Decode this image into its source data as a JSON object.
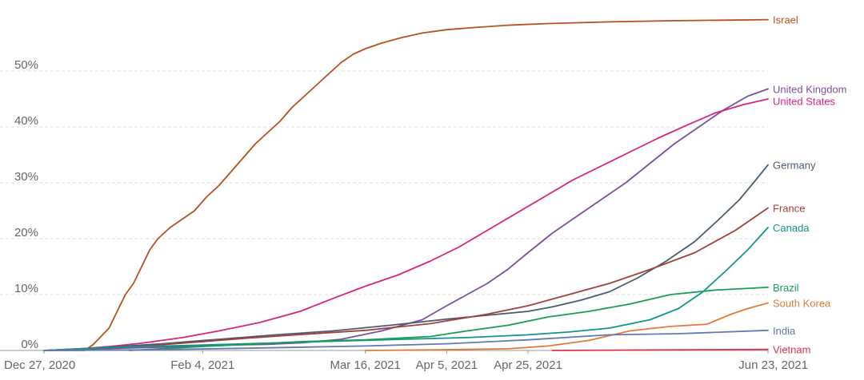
{
  "chart_data": {
    "type": "line",
    "title": "",
    "xlabel": "",
    "ylabel": "",
    "x_ticks": [
      "Dec 27, 2020",
      "Feb 4, 2021",
      "Mar 16, 2021",
      "Apr 5, 2021",
      "Apr 25, 2021",
      "Jun 23, 2021"
    ],
    "y_ticks": [
      "0%",
      "10%",
      "20%",
      "30%",
      "40%",
      "50%"
    ],
    "xlim": [
      "2020-12-27",
      "2021-06-23"
    ],
    "ylim": [
      0,
      59
    ],
    "grid": true,
    "legend": "inline labels at line ends",
    "series": [
      {
        "name": "Israel",
        "color": "#b6521c",
        "points": [
          [
            "2020-12-27",
            0
          ],
          [
            "2021-01-06",
            0
          ],
          [
            "2021-01-08",
            1
          ],
          [
            "2021-01-10",
            2.5
          ],
          [
            "2021-01-12",
            4
          ],
          [
            "2021-01-14",
            7
          ],
          [
            "2021-01-16",
            10
          ],
          [
            "2021-01-18",
            12
          ],
          [
            "2021-01-20",
            15
          ],
          [
            "2021-01-22",
            18
          ],
          [
            "2021-01-24",
            20
          ],
          [
            "2021-01-27",
            22
          ],
          [
            "2021-01-30",
            23.5
          ],
          [
            "2021-02-02",
            25
          ],
          [
            "2021-02-05",
            27.5
          ],
          [
            "2021-02-08",
            29.5
          ],
          [
            "2021-02-11",
            32
          ],
          [
            "2021-02-14",
            34.5
          ],
          [
            "2021-02-17",
            37
          ],
          [
            "2021-02-20",
            39
          ],
          [
            "2021-02-23",
            41
          ],
          [
            "2021-02-26",
            43.5
          ],
          [
            "2021-03-01",
            45.5
          ],
          [
            "2021-03-04",
            47.5
          ],
          [
            "2021-03-07",
            49.5
          ],
          [
            "2021-03-10",
            51.5
          ],
          [
            "2021-03-13",
            53
          ],
          [
            "2021-03-16",
            54
          ],
          [
            "2021-03-20",
            55
          ],
          [
            "2021-03-25",
            56
          ],
          [
            "2021-03-30",
            56.8
          ],
          [
            "2021-04-05",
            57.4
          ],
          [
            "2021-04-12",
            57.8
          ],
          [
            "2021-04-20",
            58.2
          ],
          [
            "2021-04-30",
            58.5
          ],
          [
            "2021-05-15",
            58.8
          ],
          [
            "2021-05-30",
            59
          ],
          [
            "2021-06-23",
            59.2
          ]
        ]
      },
      {
        "name": "United Kingdom",
        "color": "#7d4fa3",
        "points": [
          [
            "2020-12-27",
            0
          ],
          [
            "2021-01-10",
            0.3
          ],
          [
            "2021-01-25",
            0.6
          ],
          [
            "2021-02-05",
            0.9
          ],
          [
            "2021-02-20",
            1.1
          ],
          [
            "2021-03-01",
            1.4
          ],
          [
            "2021-03-10",
            2
          ],
          [
            "2021-03-20",
            3.5
          ],
          [
            "2021-03-30",
            5.5
          ],
          [
            "2021-04-05",
            8
          ],
          [
            "2021-04-10",
            10
          ],
          [
            "2021-04-15",
            12
          ],
          [
            "2021-04-20",
            14.5
          ],
          [
            "2021-04-25",
            17.5
          ],
          [
            "2021-05-01",
            21
          ],
          [
            "2021-05-07",
            24
          ],
          [
            "2021-05-13",
            27
          ],
          [
            "2021-05-19",
            30
          ],
          [
            "2021-05-25",
            33.5
          ],
          [
            "2021-05-31",
            37
          ],
          [
            "2021-06-06",
            40
          ],
          [
            "2021-06-12",
            43
          ],
          [
            "2021-06-18",
            45.5
          ],
          [
            "2021-06-23",
            46.8
          ]
        ]
      },
      {
        "name": "United States",
        "color": "#d6247f",
        "points": [
          [
            "2020-12-27",
            0
          ],
          [
            "2021-01-05",
            0.3
          ],
          [
            "2021-01-12",
            0.7
          ],
          [
            "2021-01-20",
            1.3
          ],
          [
            "2021-01-30",
            2.3
          ],
          [
            "2021-02-08",
            3.5
          ],
          [
            "2021-02-18",
            5
          ],
          [
            "2021-02-28",
            7
          ],
          [
            "2021-03-08",
            9.3
          ],
          [
            "2021-03-16",
            11.5
          ],
          [
            "2021-03-24",
            13.5
          ],
          [
            "2021-04-01",
            16
          ],
          [
            "2021-04-08",
            18.5
          ],
          [
            "2021-04-15",
            21.5
          ],
          [
            "2021-04-22",
            24.5
          ],
          [
            "2021-04-29",
            27.5
          ],
          [
            "2021-05-06",
            30.5
          ],
          [
            "2021-05-13",
            33
          ],
          [
            "2021-05-20",
            35.5
          ],
          [
            "2021-05-27",
            38
          ],
          [
            "2021-06-03",
            40.3
          ],
          [
            "2021-06-10",
            42.5
          ],
          [
            "2021-06-17",
            44
          ],
          [
            "2021-06-23",
            45
          ]
        ]
      },
      {
        "name": "Germany",
        "color": "#4a5b72",
        "points": [
          [
            "2020-12-27",
            0
          ],
          [
            "2021-01-10",
            0.5
          ],
          [
            "2021-01-25",
            1.2
          ],
          [
            "2021-02-08",
            2
          ],
          [
            "2021-02-22",
            2.8
          ],
          [
            "2021-03-08",
            3.5
          ],
          [
            "2021-03-22",
            4.5
          ],
          [
            "2021-04-05",
            5.6
          ],
          [
            "2021-04-15",
            6.3
          ],
          [
            "2021-04-25",
            7
          ],
          [
            "2021-05-01",
            7.8
          ],
          [
            "2021-05-08",
            9
          ],
          [
            "2021-05-15",
            10.5
          ],
          [
            "2021-05-22",
            13
          ],
          [
            "2021-05-29",
            16
          ],
          [
            "2021-06-05",
            19.5
          ],
          [
            "2021-06-11",
            23.5
          ],
          [
            "2021-06-16",
            27
          ],
          [
            "2021-06-20",
            30.5
          ],
          [
            "2021-06-23",
            33.2
          ]
        ]
      },
      {
        "name": "France",
        "color": "#a3403a",
        "points": [
          [
            "2020-12-27",
            0
          ],
          [
            "2021-01-15",
            0.5
          ],
          [
            "2021-01-30",
            1.3
          ],
          [
            "2021-02-15",
            2.2
          ],
          [
            "2021-03-01",
            2.9
          ],
          [
            "2021-03-16",
            3.6
          ],
          [
            "2021-04-01",
            4.8
          ],
          [
            "2021-04-15",
            6.5
          ],
          [
            "2021-04-25",
            8
          ],
          [
            "2021-05-05",
            10
          ],
          [
            "2021-05-15",
            12
          ],
          [
            "2021-05-25",
            14.5
          ],
          [
            "2021-06-05",
            17.5
          ],
          [
            "2021-06-15",
            21.5
          ],
          [
            "2021-06-23",
            25.5
          ]
        ]
      },
      {
        "name": "Canada",
        "color": "#12958f",
        "points": [
          [
            "2020-12-27",
            0
          ],
          [
            "2021-01-15",
            0.6
          ],
          [
            "2021-02-05",
            1
          ],
          [
            "2021-03-01",
            1.5
          ],
          [
            "2021-03-20",
            1.9
          ],
          [
            "2021-04-10",
            2.3
          ],
          [
            "2021-04-25",
            2.8
          ],
          [
            "2021-05-05",
            3.3
          ],
          [
            "2021-05-15",
            4
          ],
          [
            "2021-05-25",
            5.5
          ],
          [
            "2021-06-01",
            7.5
          ],
          [
            "2021-06-07",
            10.5
          ],
          [
            "2021-06-13",
            14.5
          ],
          [
            "2021-06-18",
            18
          ],
          [
            "2021-06-23",
            22
          ]
        ]
      },
      {
        "name": "Brazil",
        "color": "#189d57",
        "points": [
          [
            "2021-01-17",
            0
          ],
          [
            "2021-02-01",
            0.6
          ],
          [
            "2021-02-15",
            1.1
          ],
          [
            "2021-03-01",
            1.6
          ],
          [
            "2021-03-16",
            1.9
          ],
          [
            "2021-04-01",
            2.5
          ],
          [
            "2021-04-10",
            3.5
          ],
          [
            "2021-04-20",
            4.5
          ],
          [
            "2021-04-30",
            6
          ],
          [
            "2021-05-10",
            7
          ],
          [
            "2021-05-20",
            8.3
          ],
          [
            "2021-05-30",
            10
          ],
          [
            "2021-06-10",
            10.8
          ],
          [
            "2021-06-23",
            11.3
          ]
        ]
      },
      {
        "name": "South Korea",
        "color": "#e07c3a",
        "points": [
          [
            "2021-03-16",
            0
          ],
          [
            "2021-04-01",
            0.1
          ],
          [
            "2021-04-20",
            0.3
          ],
          [
            "2021-04-30",
            0.8
          ],
          [
            "2021-05-10",
            1.8
          ],
          [
            "2021-05-20",
            3.5
          ],
          [
            "2021-05-30",
            4.3
          ],
          [
            "2021-06-08",
            4.7
          ],
          [
            "2021-06-14",
            6.5
          ],
          [
            "2021-06-18",
            7.5
          ],
          [
            "2021-06-23",
            8.5
          ]
        ]
      },
      {
        "name": "India",
        "color": "#6479b2",
        "points": [
          [
            "2020-12-27",
            0
          ],
          [
            "2021-01-20",
            0.1
          ],
          [
            "2021-02-15",
            0.4
          ],
          [
            "2021-03-16",
            0.8
          ],
          [
            "2021-04-05",
            1.2
          ],
          [
            "2021-04-25",
            1.9
          ],
          [
            "2021-05-15",
            2.8
          ],
          [
            "2021-06-01",
            3
          ],
          [
            "2021-06-23",
            3.6
          ]
        ]
      },
      {
        "name": "Vietnam",
        "color": "#e0344e",
        "points": [
          [
            "2021-05-01",
            0
          ],
          [
            "2021-06-23",
            0.2
          ]
        ]
      }
    ]
  }
}
